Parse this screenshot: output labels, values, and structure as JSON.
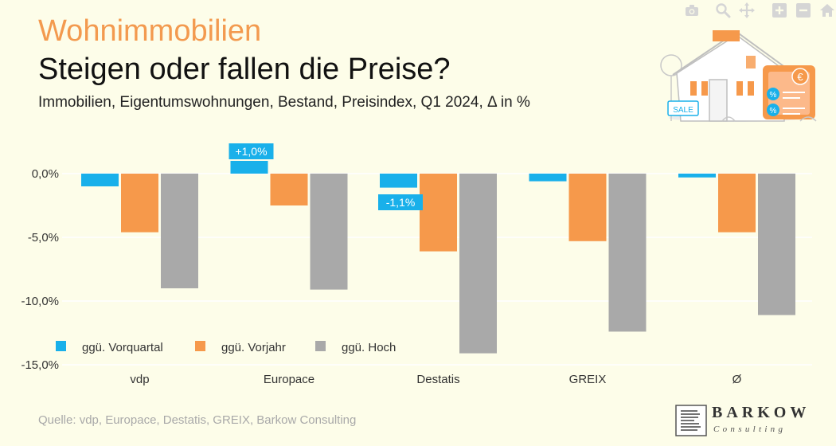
{
  "header": {
    "kicker": "Wohnimmobilien",
    "title": "Steigen oder fallen die Preise?",
    "subtitle": "Immobilien, Eigentumswohnungen, Bestand, Preisindex, Q1 2024, Δ in %"
  },
  "footer": {
    "source": "Quelle: vdp, Europace, Destatis, GREIX, Barkow Consulting"
  },
  "logo": {
    "name": "BARKOW",
    "sub": "Consulting"
  },
  "toolbar": {
    "icons": [
      "camera-icon",
      "zoom-icon",
      "pan-icon",
      "zoom-in-icon",
      "zoom-out-icon",
      "home-icon"
    ]
  },
  "illustration": {
    "sign": "SALE",
    "currency": "€",
    "percent": "%"
  },
  "chart_data": {
    "type": "bar",
    "categories": [
      "vdp",
      "Europace",
      "Destatis",
      "GREIX",
      "Ø"
    ],
    "series": [
      {
        "name": "ggü. Vorquartal",
        "color": "#19b0ea",
        "values": [
          -1.0,
          1.0,
          -1.1,
          -0.6,
          -0.3
        ]
      },
      {
        "name": "ggü. Vorjahr",
        "color": "#f6994b",
        "values": [
          -4.6,
          -2.5,
          -6.1,
          -5.3,
          -4.6
        ]
      },
      {
        "name": "ggü. Hoch",
        "color": "#a9a9a9",
        "values": [
          -9.0,
          -9.1,
          -14.1,
          -12.4,
          -11.1
        ]
      }
    ],
    "data_labels": [
      {
        "series": 0,
        "category": 1,
        "text": "+1,0%"
      },
      {
        "series": 0,
        "category": 2,
        "text": "-1,1%"
      }
    ],
    "yticks": [
      {
        "value": 0,
        "label": "0,0%"
      },
      {
        "value": -5,
        "label": "-5,0%"
      },
      {
        "value": -10,
        "label": "-10,0%"
      },
      {
        "value": -15,
        "label": "-15,0%"
      }
    ],
    "ylim": [
      -15,
      2.5
    ],
    "grid": true,
    "legend": "bottom-left"
  }
}
